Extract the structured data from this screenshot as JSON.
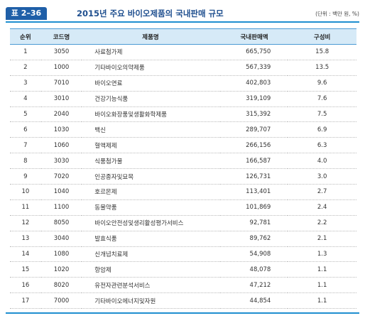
{
  "header": {
    "label": "표 2–36",
    "title": "2015년 주요 바이오제품의 국내판매 규모",
    "unit": "(단위 : 백만 원, %)"
  },
  "table": {
    "columns": [
      "순위",
      "코드명",
      "제품명",
      "국내판매액",
      "구성비"
    ],
    "rows": [
      [
        "1",
        "3050",
        "사료첨가제",
        "665,750",
        "15.8"
      ],
      [
        "2",
        "1000",
        "기타바이오의약제품",
        "567,339",
        "13.5"
      ],
      [
        "3",
        "7010",
        "바이오연료",
        "402,803",
        "9.6"
      ],
      [
        "4",
        "3010",
        "건강기능식품",
        "319,109",
        "7.6"
      ],
      [
        "5",
        "2040",
        "바이오화장품및생활화학제품",
        "315,392",
        "7.5"
      ],
      [
        "6",
        "1030",
        "백신",
        "289,707",
        "6.9"
      ],
      [
        "7",
        "1060",
        "혈액제제",
        "266,156",
        "6.3"
      ],
      [
        "8",
        "3030",
        "식품첨가물",
        "166,587",
        "4.0"
      ],
      [
        "9",
        "7020",
        "인공종자및묘목",
        "126,731",
        "3.0"
      ],
      [
        "10",
        "1040",
        "호르몬제",
        "113,401",
        "2.7"
      ],
      [
        "11",
        "1100",
        "동물약품",
        "101,869",
        "2.4"
      ],
      [
        "12",
        "8050",
        "바이오안전성및생리활성평가서비스",
        "92,781",
        "2.2"
      ],
      [
        "13",
        "3040",
        "발효식품",
        "89,762",
        "2.1"
      ],
      [
        "14",
        "1080",
        "신개념치료제",
        "54,908",
        "1.3"
      ],
      [
        "15",
        "1020",
        "항암제",
        "48,078",
        "1.1"
      ],
      [
        "16",
        "8020",
        "유전자관련분석서비스",
        "47,212",
        "1.1"
      ],
      [
        "17",
        "7000",
        "기타바이오에너지및자원",
        "44,854",
        "1.1"
      ]
    ]
  }
}
